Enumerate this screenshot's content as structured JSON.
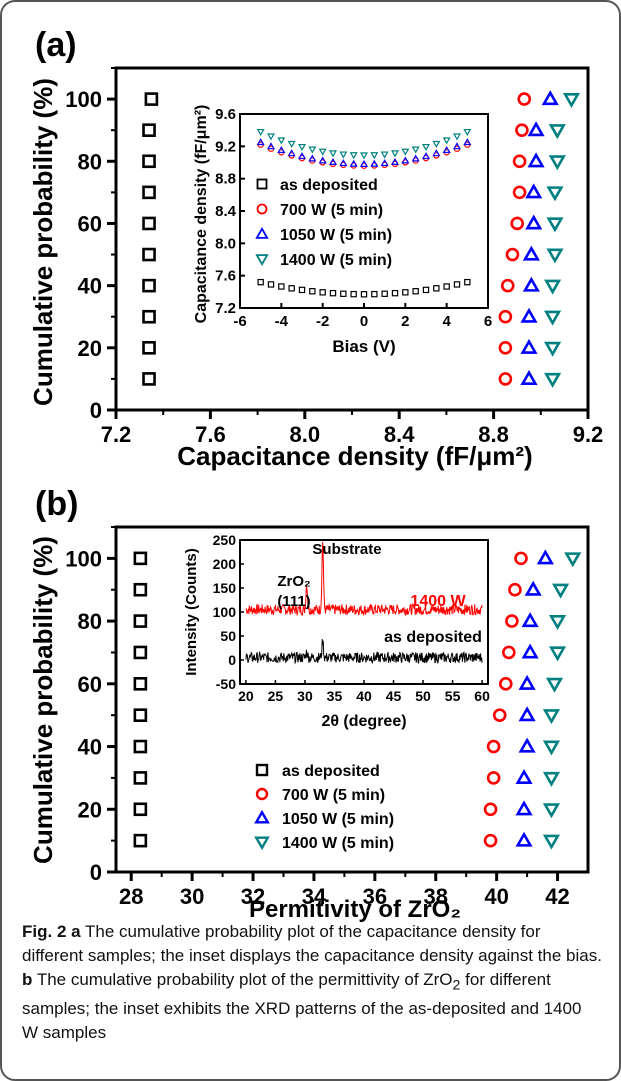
{
  "colors": {
    "as_deposited": "#000000",
    "w700": "#ff0000",
    "w1050": "#0000ff",
    "w1400": "#008080",
    "xrd_red": "#ff0000",
    "xrd_black": "#000000"
  },
  "caption": {
    "fig": "Fig. 2",
    "a_letter": "a",
    "a_text": "The cumulative probability plot of the capacitance density for different samples; the inset displays the capacitance density against the bias.",
    "b_letter": "b",
    "b_text_1": "The cumulative probability plot of the permittivity of ZrO",
    "b_sub": "2",
    "b_text_2": "for different samples; the inset exhibits the XRD patterns of the as-deposited and 1400 W samples"
  },
  "chart_data": [
    {
      "panel": "(a)",
      "type": "scatter",
      "xlabel": "Capacitance density (fF/μm²)",
      "ylabel": "Cumulative probability (%)",
      "xlim": [
        7.2,
        9.2
      ],
      "ylim": [
        0,
        110
      ],
      "xticks": [
        7.2,
        7.6,
        8.0,
        8.4,
        8.8,
        9.2
      ],
      "yticks": [
        0,
        20,
        40,
        60,
        80,
        100
      ],
      "series": [
        {
          "name": "as deposited",
          "marker": "square",
          "color": "#000000",
          "points": [
            [
              7.34,
              10
            ],
            [
              7.34,
              20
            ],
            [
              7.34,
              30
            ],
            [
              7.34,
              40
            ],
            [
              7.34,
              50
            ],
            [
              7.34,
              60
            ],
            [
              7.34,
              70
            ],
            [
              7.34,
              80
            ],
            [
              7.34,
              90
            ],
            [
              7.35,
              100
            ]
          ]
        },
        {
          "name": "700 W (5 min)",
          "marker": "circle",
          "color": "#ff0000",
          "points": [
            [
              8.85,
              10
            ],
            [
              8.85,
              20
            ],
            [
              8.85,
              30
            ],
            [
              8.86,
              40
            ],
            [
              8.88,
              50
            ],
            [
              8.9,
              60
            ],
            [
              8.91,
              70
            ],
            [
              8.91,
              80
            ],
            [
              8.92,
              90
            ],
            [
              8.93,
              100
            ]
          ]
        },
        {
          "name": "1050 W (5 min)",
          "marker": "triangle-up",
          "color": "#0000ff",
          "points": [
            [
              8.95,
              10
            ],
            [
              8.95,
              20
            ],
            [
              8.95,
              30
            ],
            [
              8.96,
              40
            ],
            [
              8.96,
              50
            ],
            [
              8.97,
              60
            ],
            [
              8.97,
              70
            ],
            [
              8.98,
              80
            ],
            [
              8.98,
              90
            ],
            [
              9.04,
              100
            ]
          ]
        },
        {
          "name": "1400 W (5 min)",
          "marker": "triangle-down",
          "color": "#008080",
          "points": [
            [
              9.05,
              10
            ],
            [
              9.05,
              20
            ],
            [
              9.05,
              30
            ],
            [
              9.05,
              40
            ],
            [
              9.06,
              50
            ],
            [
              9.06,
              60
            ],
            [
              9.06,
              70
            ],
            [
              9.07,
              80
            ],
            [
              9.07,
              90
            ],
            [
              9.13,
              100
            ]
          ]
        }
      ],
      "inset": {
        "type": "scatter",
        "xlabel": "Bias (V)",
        "ylabel": "Capacitance density (fF/μm²)",
        "xlim": [
          -6,
          6
        ],
        "ylim": [
          7.2,
          9.6
        ],
        "xticks": [
          -6,
          -4,
          -2,
          0,
          2,
          4,
          6
        ],
        "yticks": [
          7.2,
          7.6,
          8.0,
          8.4,
          8.8,
          9.2,
          9.6
        ],
        "legend": [
          "as deposited",
          "700 W (5 min)",
          "1050 W (5 min)",
          "1400 W (5 min)"
        ],
        "curves": [
          {
            "name": "as deposited",
            "marker": "square",
            "color": "#000000",
            "center": 7.37,
            "edge": 7.52
          },
          {
            "name": "700 W (5 min)",
            "marker": "circle",
            "color": "#ff0000",
            "center": 8.96,
            "edge": 9.22
          },
          {
            "name": "1050 W (5 min)",
            "marker": "triangle-up",
            "color": "#0000ff",
            "center": 8.98,
            "edge": 9.25
          },
          {
            "name": "1400 W (5 min)",
            "marker": "triangle-down",
            "color": "#008080",
            "center": 9.09,
            "edge": 9.38
          }
        ],
        "bias_points": [
          -5,
          -4.5,
          -4,
          -3.5,
          -3,
          -2.5,
          -2,
          -1.5,
          -1,
          -0.5,
          0,
          0.5,
          1,
          1.5,
          2,
          2.5,
          3,
          3.5,
          4,
          4.5,
          5
        ]
      }
    },
    {
      "panel": "(b)",
      "type": "scatter",
      "xlabel": "Permitivity of ZrO₂",
      "ylabel": "Cumulative probability (%)",
      "xlim": [
        27.5,
        43
      ],
      "ylim": [
        0,
        110
      ],
      "xticks": [
        28,
        30,
        32,
        34,
        36,
        38,
        40,
        42
      ],
      "yticks": [
        0,
        20,
        40,
        60,
        80,
        100
      ],
      "legend": [
        "as deposited",
        "700 W (5 min)",
        "1050 W (5 min)",
        "1400 W (5 min)"
      ],
      "series": [
        {
          "name": "as deposited",
          "marker": "square",
          "color": "#000000",
          "points": [
            [
              28.3,
              10
            ],
            [
              28.3,
              20
            ],
            [
              28.3,
              30
            ],
            [
              28.3,
              40
            ],
            [
              28.3,
              50
            ],
            [
              28.3,
              60
            ],
            [
              28.3,
              70
            ],
            [
              28.3,
              80
            ],
            [
              28.3,
              90
            ],
            [
              28.3,
              100
            ]
          ]
        },
        {
          "name": "700 W (5 min)",
          "marker": "circle",
          "color": "#ff0000",
          "points": [
            [
              39.8,
              10
            ],
            [
              39.8,
              20
            ],
            [
              39.9,
              30
            ],
            [
              39.9,
              40
            ],
            [
              40.1,
              50
            ],
            [
              40.3,
              60
            ],
            [
              40.4,
              70
            ],
            [
              40.5,
              80
            ],
            [
              40.6,
              90
            ],
            [
              40.8,
              100
            ]
          ]
        },
        {
          "name": "1050 W (5 min)",
          "marker": "triangle-up",
          "color": "#0000ff",
          "points": [
            [
              40.9,
              10
            ],
            [
              40.9,
              20
            ],
            [
              40.9,
              30
            ],
            [
              41.0,
              40
            ],
            [
              41.0,
              50
            ],
            [
              41.0,
              60
            ],
            [
              41.1,
              70
            ],
            [
              41.1,
              80
            ],
            [
              41.2,
              90
            ],
            [
              41.6,
              100
            ]
          ]
        },
        {
          "name": "1400 W (5 min)",
          "marker": "triangle-down",
          "color": "#008080",
          "points": [
            [
              41.8,
              10
            ],
            [
              41.8,
              20
            ],
            [
              41.8,
              30
            ],
            [
              41.8,
              40
            ],
            [
              41.8,
              50
            ],
            [
              41.9,
              60
            ],
            [
              42.0,
              70
            ],
            [
              42.0,
              80
            ],
            [
              42.1,
              90
            ],
            [
              42.5,
              100
            ]
          ]
        }
      ],
      "inset": {
        "type": "line",
        "xlabel": "2θ (degree)",
        "ylabel": "Intensity (Counts)",
        "xlim": [
          19,
          61
        ],
        "ylim": [
          -50,
          250
        ],
        "xticks": [
          20,
          25,
          30,
          35,
          40,
          45,
          50,
          55,
          60
        ],
        "yticks": [
          -50,
          0,
          50,
          100,
          150,
          200,
          250
        ],
        "annotations": [
          "Substrate",
          "ZrO₂",
          "(111)",
          "1400 W",
          "as deposited"
        ],
        "series": [
          {
            "name": "1400 W",
            "color": "#ff0000",
            "baseline": 105,
            "noise": 22,
            "peaks": [
              [
                30.3,
                55
              ],
              [
                33.0,
                145
              ]
            ]
          },
          {
            "name": "as deposited",
            "color": "#000000",
            "baseline": 5,
            "noise": 22,
            "peaks": [
              [
                30.3,
                12
              ],
              [
                33.0,
                35
              ]
            ]
          }
        ]
      }
    }
  ]
}
